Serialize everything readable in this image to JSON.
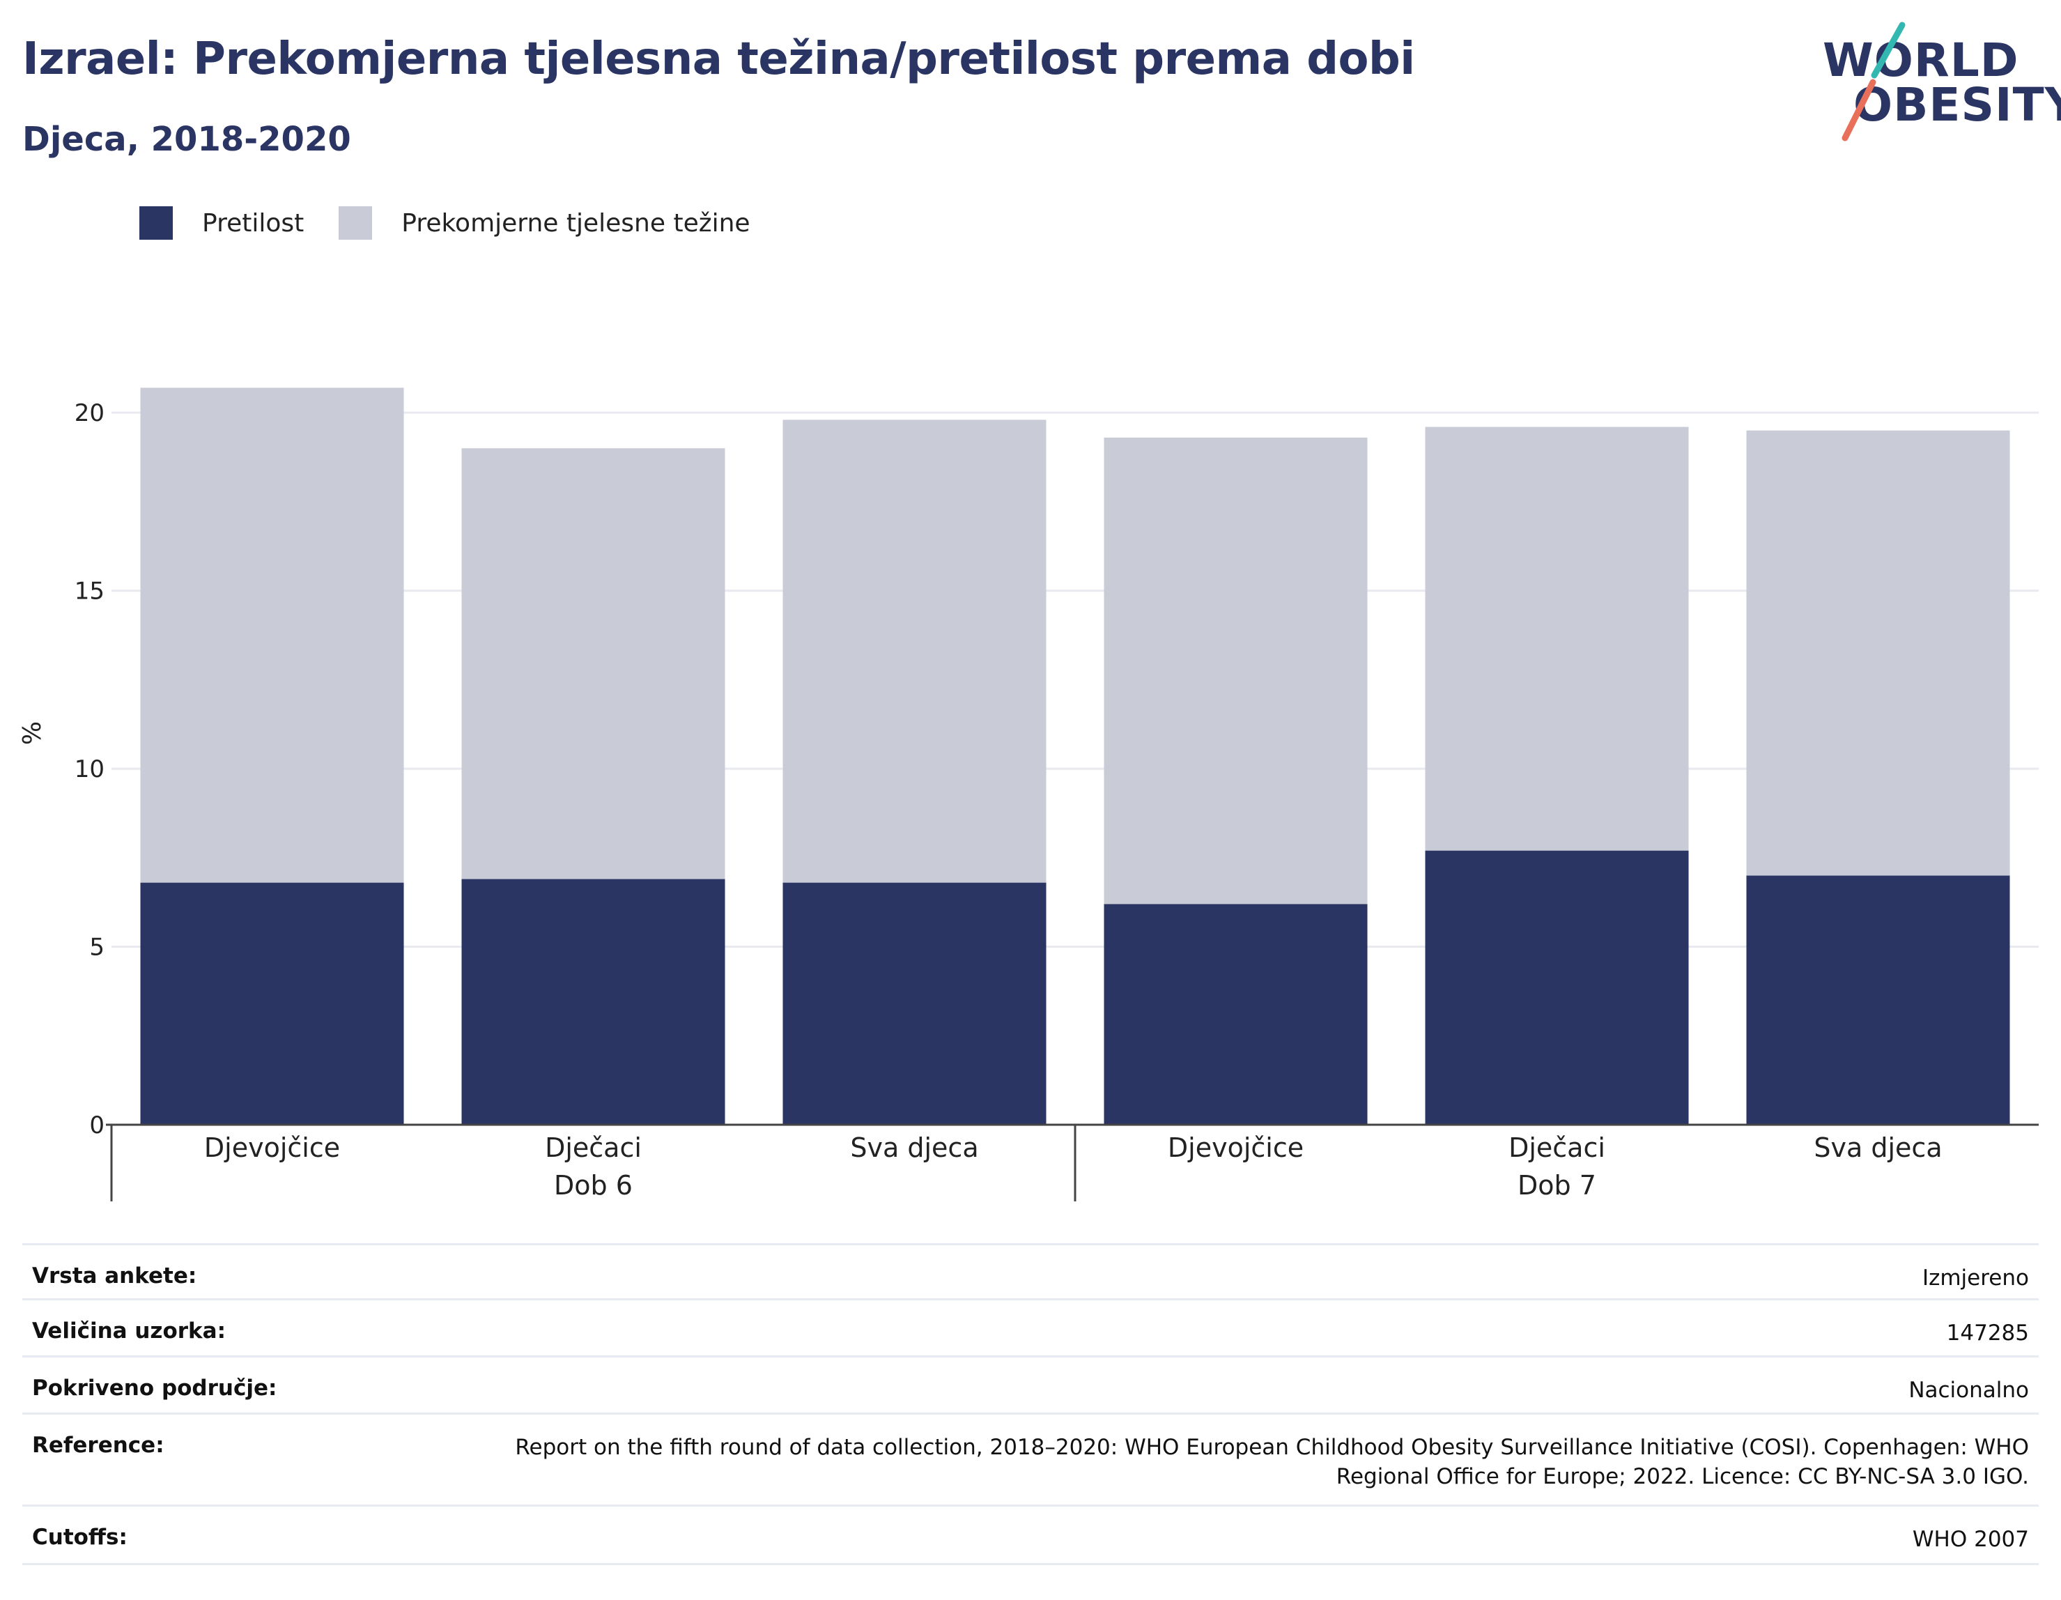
{
  "title": "Izrael: Prekomjerna tjelesna težina/pretilost prema dobi",
  "subtitle": "Djeca, 2018-2020",
  "logo": {
    "line1": "WORLD",
    "line2": "OBESITY",
    "accent_colors": [
      "#33b8b1",
      "#e8705a"
    ]
  },
  "colors": {
    "obesity": "#2a3563",
    "overweight": "#c9cbd7",
    "title": "#2a3563"
  },
  "legend": [
    {
      "label": "Pretilost",
      "color": "#2a3563"
    },
    {
      "label": "Prekomjerne tjelesne težine",
      "color": "#c9cbd7"
    }
  ],
  "chart_data": {
    "type": "bar",
    "stacked": true,
    "ylabel": "%",
    "ylim": [
      0,
      22
    ],
    "yticks": [
      0,
      5,
      10,
      15,
      20
    ],
    "grid": true,
    "legend_position": "top-left",
    "groups": [
      {
        "label": "Dob 6",
        "categories": [
          "Djevojčice",
          "Dječaci",
          "Sva djeca"
        ]
      },
      {
        "label": "Dob 7",
        "categories": [
          "Djevojčice",
          "Dječaci",
          "Sva djeca"
        ]
      }
    ],
    "categories": [
      "Djevojčice",
      "Dječaci",
      "Sva djeca",
      "Djevojčice",
      "Dječaci",
      "Sva djeca"
    ],
    "series": [
      {
        "name": "Pretilost",
        "values": [
          6.8,
          6.9,
          6.8,
          6.2,
          7.7,
          7.0
        ]
      },
      {
        "name": "Prekomjerne tjelesne težine",
        "values": [
          13.9,
          12.1,
          13.0,
          13.1,
          11.9,
          12.5
        ]
      }
    ]
  },
  "info": [
    {
      "key": "Vrsta ankete:",
      "value": "Izmjereno"
    },
    {
      "key": "Veličina uzorka:",
      "value": "147285"
    },
    {
      "key": "Pokriveno područje:",
      "value": "Nacionalno"
    },
    {
      "key": "Reference:",
      "value": "Report on the fifth round of data collection, 2018–2020: WHO European Childhood Obesity Surveillance Initiative (COSI). Copenhagen: WHO Regional Office for Europe; 2022. Licence: CC BY-NC-SA 3.0 IGO."
    },
    {
      "key": "Cutoffs:",
      "value": "WHO 2007"
    }
  ]
}
